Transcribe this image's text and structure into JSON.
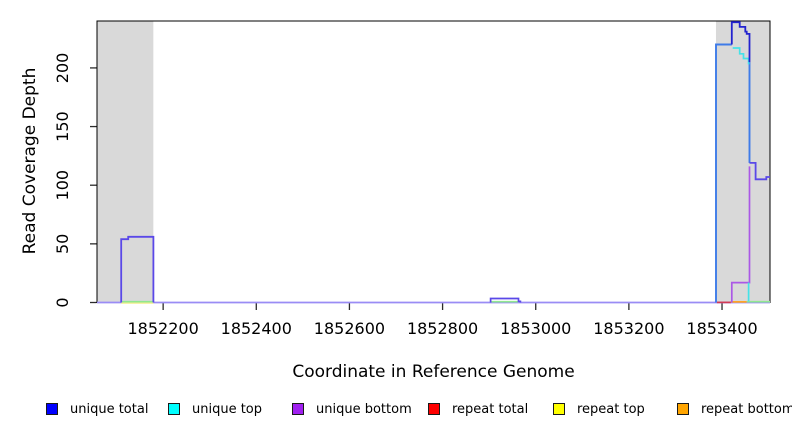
{
  "figure": {
    "x_axis_title": "Coordinate in Reference Genome",
    "y_axis_title": "Read Coverage Depth"
  },
  "chart_data": {
    "type": "line",
    "title": "",
    "xlabel": "Coordinate in Reference Genome",
    "ylabel": "Read Coverage Depth",
    "xlim": [
      1852058,
      1853503
    ],
    "ylim": [
      0,
      240
    ],
    "grid": false,
    "legend_position": "bottom",
    "x_ticks": [
      {
        "value": 1852200,
        "label": "1852200"
      },
      {
        "value": 1852400,
        "label": "1852400"
      },
      {
        "value": 1852600,
        "label": "1852600"
      },
      {
        "value": 1852800,
        "label": "1852800"
      },
      {
        "value": 1853000,
        "label": "1853000"
      },
      {
        "value": 1853200,
        "label": "1853200"
      },
      {
        "value": 1853400,
        "label": "1853400"
      }
    ],
    "y_ticks": [
      {
        "value": 0,
        "label": "0"
      },
      {
        "value": 50,
        "label": "50"
      },
      {
        "value": 100,
        "label": "100"
      },
      {
        "value": 150,
        "label": "150"
      },
      {
        "value": 200,
        "label": "200"
      }
    ],
    "highlight_regions": [
      {
        "name": "left-gray-region",
        "x1": 1852058,
        "x2": 1852179,
        "color": "#D9D9D9"
      },
      {
        "name": "right-gray-region",
        "x1": 1853387,
        "x2": 1853503,
        "color": "#D9D9D9"
      }
    ],
    "series": [
      {
        "name": "unique total",
        "color": "#0000FF",
        "points": [
          [
            1852058,
            0
          ],
          [
            1852110,
            0
          ],
          [
            1852110,
            54
          ],
          [
            1852125,
            54
          ],
          [
            1852125,
            56
          ],
          [
            1852179,
            56
          ],
          [
            1852179,
            0
          ],
          [
            1852903,
            0
          ],
          [
            1852903,
            3
          ],
          [
            1852963,
            3
          ],
          [
            1852963,
            0
          ],
          [
            1853387,
            0
          ],
          [
            1853387,
            220
          ],
          [
            1853421,
            220
          ],
          [
            1853421,
            239
          ],
          [
            1853438,
            239
          ],
          [
            1853438,
            235
          ],
          [
            1853450,
            235
          ],
          [
            1853450,
            231
          ],
          [
            1853453,
            231
          ],
          [
            1853453,
            229
          ],
          [
            1853459,
            229
          ],
          [
            1853459,
            118
          ],
          [
            1853472,
            118
          ],
          [
            1853472,
            105
          ],
          [
            1853495,
            105
          ],
          [
            1853495,
            107
          ],
          [
            1853503,
            107
          ]
        ]
      },
      {
        "name": "unique top",
        "color": "#00FFFF",
        "points": [
          [
            1852058,
            0
          ],
          [
            1853421,
            0
          ],
          [
            1853423,
            217
          ],
          [
            1853438,
            217
          ],
          [
            1853438,
            212
          ],
          [
            1853446,
            212
          ],
          [
            1853446,
            208
          ],
          [
            1853457,
            208
          ],
          [
            1853459,
            1
          ],
          [
            1853503,
            1
          ]
        ]
      },
      {
        "name": "unique bottom",
        "color": "#A020F0",
        "points": [
          [
            1852058,
            0
          ],
          [
            1852110,
            0
          ],
          [
            1852110,
            55
          ],
          [
            1852179,
            55
          ],
          [
            1852179,
            0
          ],
          [
            1853421,
            0
          ],
          [
            1853421,
            17
          ],
          [
            1853459,
            17
          ],
          [
            1853459,
            116
          ],
          [
            1853503,
            105
          ]
        ]
      },
      {
        "name": "repeat total",
        "color": "#FF0000",
        "points": [
          [
            1852058,
            0
          ],
          [
            1853387,
            0
          ],
          [
            1853387,
            1
          ],
          [
            1853419,
            1
          ],
          [
            1853419,
            0
          ],
          [
            1853503,
            0
          ]
        ]
      },
      {
        "name": "repeat top",
        "color": "#FFFF00",
        "points": [
          [
            1852058,
            0
          ],
          [
            1852110,
            0
          ],
          [
            1852110,
            1
          ],
          [
            1852179,
            1
          ],
          [
            1852179,
            0
          ],
          [
            1852903,
            0
          ],
          [
            1852903,
            1
          ],
          [
            1852963,
            1
          ],
          [
            1852963,
            0
          ],
          [
            1853503,
            0
          ]
        ]
      },
      {
        "name": "repeat bottom",
        "color": "#FFA500",
        "points": [
          [
            1852058,
            0
          ],
          [
            1853419,
            0
          ],
          [
            1853419,
            1
          ],
          [
            1853453,
            1
          ],
          [
            1853453,
            0
          ],
          [
            1853503,
            0
          ]
        ]
      }
    ],
    "rendered_segments": [
      {
        "name": "baseline-lavender",
        "color": "#9A8CF5",
        "width": 1.8,
        "points": [
          [
            1852058,
            0
          ],
          [
            1853503,
            0
          ]
        ]
      },
      {
        "name": "repeat-top-left-sliver",
        "color": "#F2EE8C",
        "width": 1.6,
        "points": [
          [
            1852110,
            -0.3
          ],
          [
            1852179,
            -0.3
          ]
        ]
      },
      {
        "name": "overlap-green-left",
        "color": "#90E890",
        "width": 1.6,
        "points": [
          [
            1852110,
            0.7
          ],
          [
            1852179,
            0.7
          ]
        ]
      },
      {
        "name": "overlap-green-mid",
        "color": "#90E890",
        "width": 1.6,
        "points": [
          [
            1852903,
            0.7
          ],
          [
            1852963,
            0.7
          ]
        ]
      },
      {
        "name": "repeat-total-right",
        "color": "#D23B55",
        "width": 1.7,
        "points": [
          [
            1853389,
            0.1
          ],
          [
            1853419,
            0.1
          ]
        ]
      },
      {
        "name": "repeat-bottom-right",
        "color": "#FFA526",
        "width": 1.8,
        "points": [
          [
            1853419,
            0.5
          ],
          [
            1853453,
            0.5
          ]
        ]
      },
      {
        "name": "overlap-green-right",
        "color": "#90E890",
        "width": 1.7,
        "points": [
          [
            1853453,
            0.7
          ],
          [
            1853503,
            0.7
          ]
        ]
      },
      {
        "name": "unique-peak-left",
        "color": "#5A48E8",
        "width": 1.8,
        "points": [
          [
            1852110,
            0
          ],
          [
            1852110,
            54
          ],
          [
            1852125,
            54
          ],
          [
            1852125,
            56
          ],
          [
            1852179,
            56
          ],
          [
            1852179,
            0
          ]
        ]
      },
      {
        "name": "unique-bump-mid",
        "color": "#5A48E8",
        "width": 1.7,
        "points": [
          [
            1852903,
            0
          ],
          [
            1852903,
            3.4
          ],
          [
            1852963,
            3.4
          ],
          [
            1852963,
            1
          ],
          [
            1852967,
            1
          ],
          [
            1852967,
            0
          ]
        ]
      },
      {
        "name": "unique-bottom-right-step",
        "color": "#AB58E6",
        "width": 1.7,
        "points": [
          [
            1853421,
            0
          ],
          [
            1853421,
            17
          ],
          [
            1853459,
            17
          ],
          [
            1853459,
            116
          ]
        ]
      },
      {
        "name": "unique-top-right-drop",
        "color": "#45E2E8",
        "width": 1.7,
        "points": [
          [
            1853457,
            17
          ],
          [
            1853457,
            1
          ]
        ]
      },
      {
        "name": "unique-total-right-rise",
        "color": "#3E7BE8",
        "width": 1.9,
        "points": [
          [
            1853387,
            0
          ],
          [
            1853387,
            220
          ],
          [
            1853421,
            220
          ]
        ]
      },
      {
        "name": "unique-total-right-drop",
        "color": "#3E7BE8",
        "width": 1.9,
        "points": [
          [
            1853459,
            205
          ],
          [
            1853459,
            119
          ]
        ]
      },
      {
        "name": "unique-top-right-steps",
        "color": "#45E2E8",
        "width": 1.7,
        "points": [
          [
            1853423,
            217
          ],
          [
            1853438,
            217
          ],
          [
            1853438,
            212
          ],
          [
            1853446,
            212
          ],
          [
            1853446,
            208
          ],
          [
            1853457,
            208
          ],
          [
            1853457,
            203
          ]
        ]
      },
      {
        "name": "unique-total-right-crest",
        "color": "#2323CF",
        "width": 1.8,
        "points": [
          [
            1853421,
            220
          ],
          [
            1853421,
            239
          ],
          [
            1853438,
            239
          ],
          [
            1853438,
            235
          ],
          [
            1853450,
            235
          ],
          [
            1853450,
            231
          ],
          [
            1853453,
            231
          ],
          [
            1853453,
            229
          ],
          [
            1853459,
            229
          ],
          [
            1853459,
            205
          ]
        ]
      },
      {
        "name": "unique-total-right-tail",
        "color": "#5A48E8",
        "width": 1.8,
        "points": [
          [
            1853459,
            119
          ],
          [
            1853472,
            119
          ],
          [
            1853472,
            105
          ],
          [
            1853495,
            105
          ],
          [
            1853495,
            107
          ],
          [
            1853503,
            107
          ]
        ]
      }
    ]
  },
  "legend": {
    "items": [
      {
        "label": "unique total",
        "color": "#0000FF"
      },
      {
        "label": "unique top",
        "color": "#00FFFF"
      },
      {
        "label": "unique bottom",
        "color": "#A020F0"
      },
      {
        "label": "repeat total",
        "color": "#FF0000"
      },
      {
        "label": "repeat top",
        "color": "#FFFF00"
      },
      {
        "label": "repeat bottom",
        "color": "#FFA500"
      }
    ]
  }
}
